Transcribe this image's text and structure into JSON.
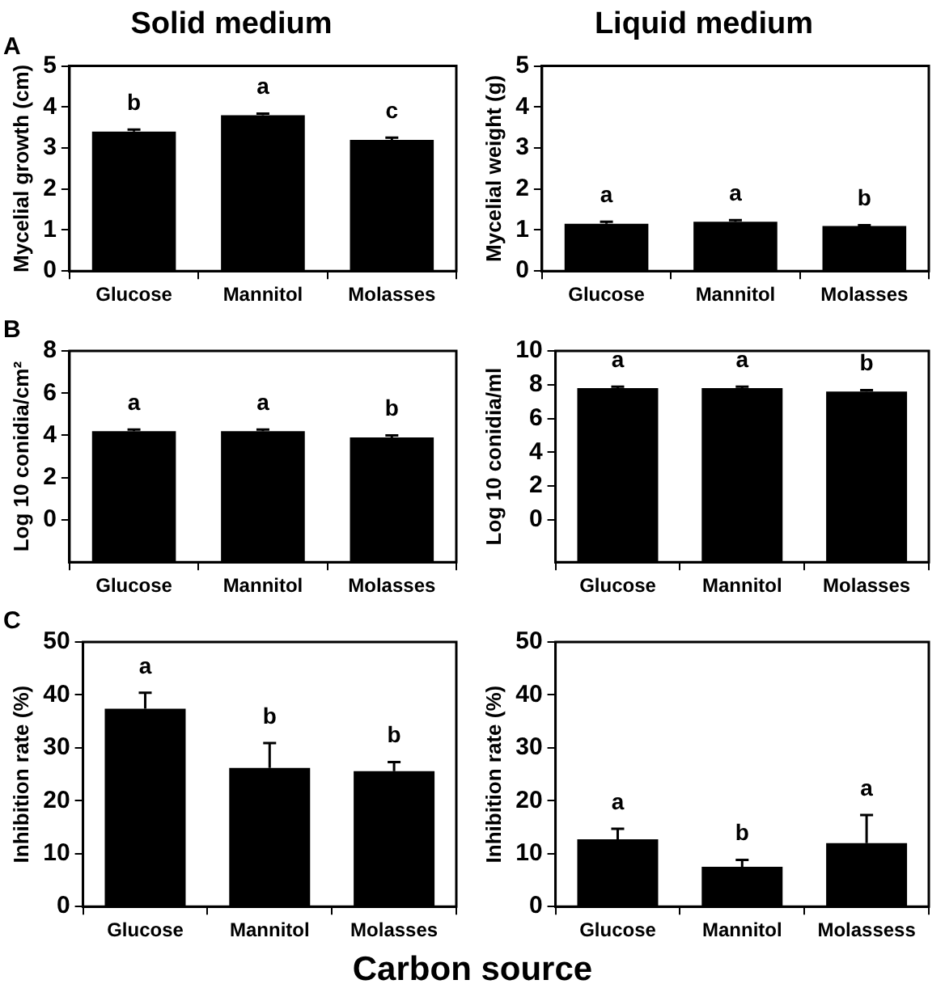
{
  "chart_data": [
    {
      "type": "bar",
      "title": "Solid medium",
      "ylabel": "Mycelial growth (cm)",
      "categories": [
        "Glucose",
        "Mannitol",
        "Molasses"
      ],
      "values": [
        3.4,
        3.8,
        3.2
      ],
      "color": "#000000",
      "errors": [
        [
          3.4,
          3.45
        ],
        [
          3.8,
          3.84
        ],
        [
          3.2,
          3.25
        ]
      ],
      "ylim": [
        0,
        5
      ],
      "yticks": [
        0,
        1,
        2,
        3,
        4,
        5
      ],
      "value_labels": [
        "b",
        "a",
        "c"
      ],
      "annotations": [
        "A"
      ]
    },
    {
      "type": "bar",
      "title": "Liquid medium",
      "ylabel": "Mycelial weight (g)",
      "categories": [
        "Glucose",
        "Mannitol",
        "Molasses"
      ],
      "values": [
        1.15,
        1.2,
        1.1
      ],
      "color": "#000000",
      "errors": [
        [
          1.15,
          1.2
        ],
        [
          1.2,
          1.24
        ],
        [
          1.1,
          1.12
        ]
      ],
      "ylim": [
        0,
        5
      ],
      "yticks": [
        0,
        1,
        2,
        3,
        4,
        5
      ],
      "value_labels": [
        "a",
        "a",
        "b"
      ]
    },
    {
      "type": "bar",
      "ylabel": "Log 10 conidia/cm²",
      "categories": [
        "Glucose",
        "Mannitol",
        "Molasses"
      ],
      "base": [
        -2,
        -2,
        -2
      ],
      "values": [
        6.2,
        6.2,
        5.9
      ],
      "color": "#000000",
      "errors": [
        [
          4.2,
          4.28
        ],
        [
          4.2,
          4.28
        ],
        [
          3.9,
          4.0
        ]
      ],
      "ylim": [
        -2,
        8
      ],
      "yticks": [
        0,
        2,
        4,
        6,
        8
      ],
      "value_labels": [
        "a",
        "a",
        "b"
      ],
      "annotations": [
        "B"
      ]
    },
    {
      "type": "bar",
      "ylabel": "Log 10 conidia/ml",
      "categories": [
        "Glucose",
        "Mannitol",
        "Molasses"
      ],
      "base": [
        -2.5,
        -2.5,
        -2.5
      ],
      "values": [
        10.3,
        10.3,
        10.1
      ],
      "color": "#000000",
      "errors": [
        [
          7.8,
          7.88
        ],
        [
          7.8,
          7.88
        ],
        [
          7.6,
          7.68
        ]
      ],
      "ylim": [
        -2.5,
        10
      ],
      "yticks": [
        0,
        2,
        4,
        6,
        8,
        10
      ],
      "value_labels": [
        "a",
        "a",
        "b"
      ]
    },
    {
      "type": "bar",
      "ylabel": "Inhibition rate (%)",
      "xlabel": "Carbon source",
      "categories": [
        "Glucose",
        "Mannitol",
        "Molasses"
      ],
      "values": [
        37.4,
        26.2,
        25.6
      ],
      "color": "#000000",
      "errors": [
        [
          37.4,
          40.4
        ],
        [
          26.2,
          30.9
        ],
        [
          25.6,
          27.3
        ]
      ],
      "ylim": [
        0,
        50
      ],
      "yticks": [
        0,
        10,
        20,
        30,
        40,
        50
      ],
      "value_labels": [
        "a",
        "b",
        "b"
      ],
      "annotations": [
        "C"
      ]
    },
    {
      "type": "bar",
      "ylabel": "Inhibition rate (%)",
      "categories": [
        "Glucose",
        "Mannitol",
        "Molassess"
      ],
      "values": [
        12.7,
        7.5,
        12
      ],
      "color": "#000000",
      "errors": [
        [
          12.7,
          14.7
        ],
        [
          7.5,
          8.8
        ],
        [
          12,
          17.3
        ]
      ],
      "ylim": [
        0,
        50
      ],
      "yticks": [
        0,
        10,
        20,
        30,
        40,
        50
      ],
      "value_labels": [
        "a",
        "b",
        "a"
      ]
    }
  ]
}
